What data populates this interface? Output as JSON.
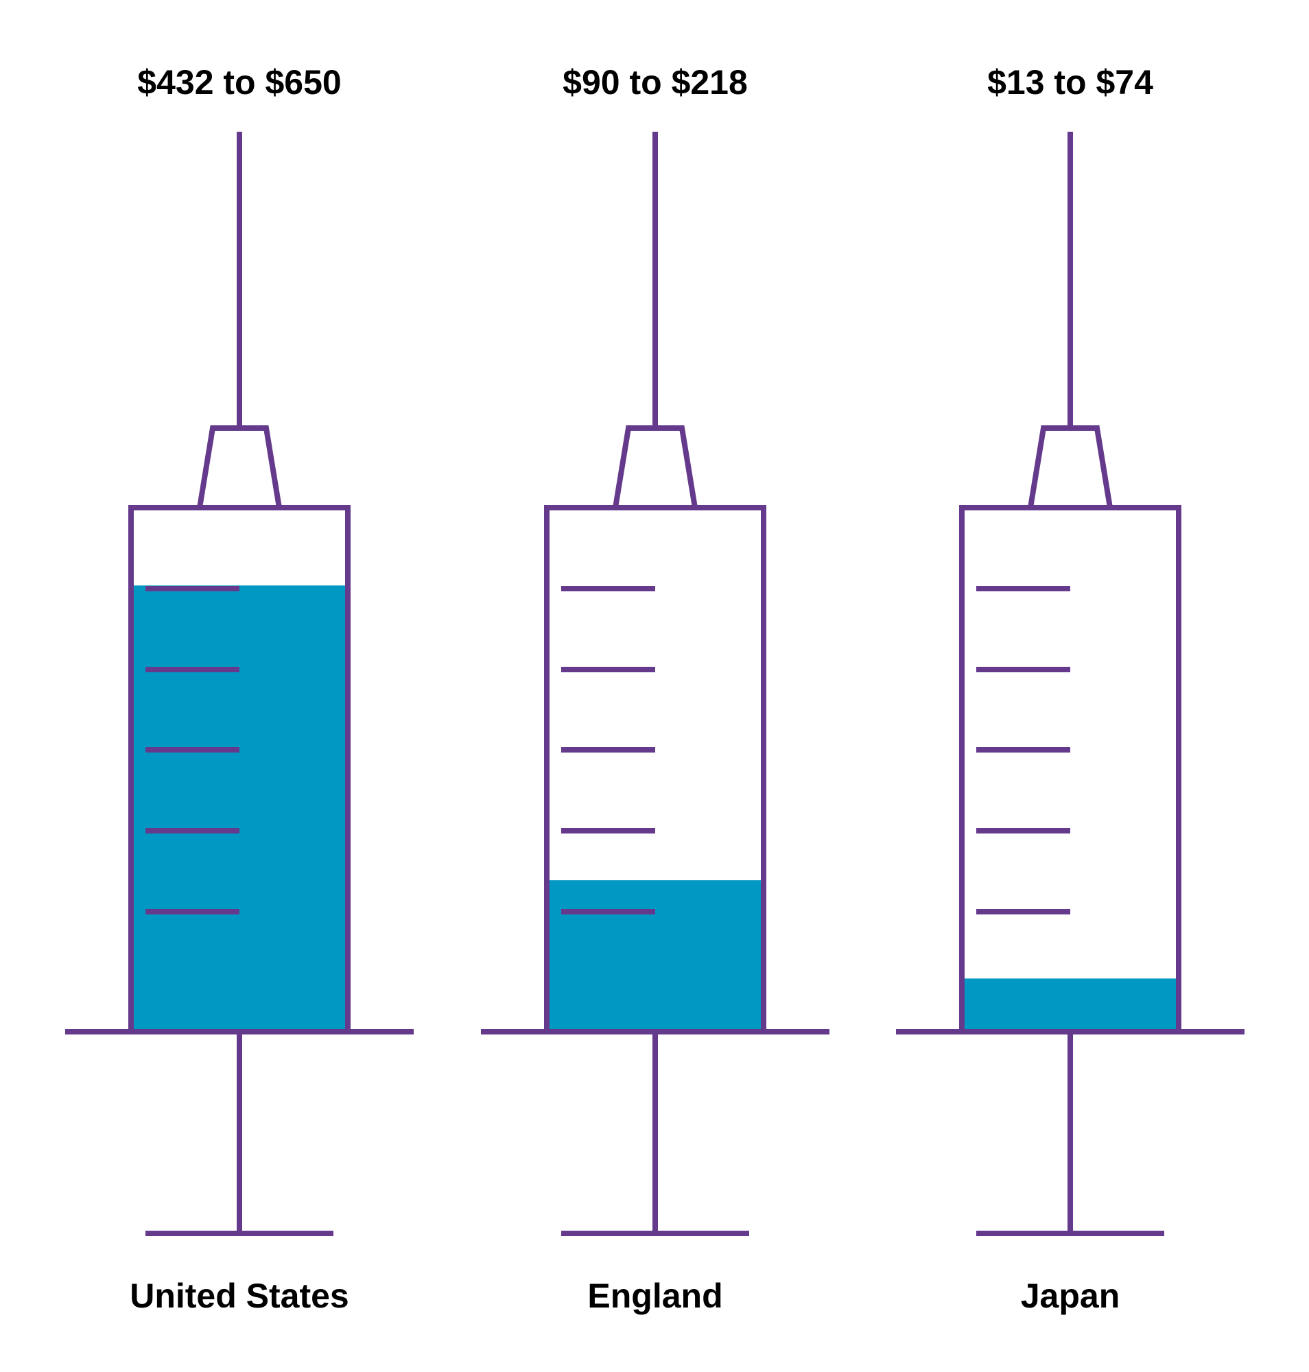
{
  "chart_data": {
    "type": "bar",
    "title": "",
    "xlabel": "",
    "ylabel": "",
    "categories": [
      "United States",
      "England",
      "Japan"
    ],
    "range_labels": [
      "$432 to $650",
      "$90 to $218",
      "$13 to $74"
    ],
    "series": [
      {
        "values": [
          650,
          218,
          74
        ]
      }
    ],
    "ylim": [
      0,
      760
    ],
    "grid": false,
    "legend": "none"
  },
  "colors": {
    "outline": "#653a8c",
    "fill": "#0199c4",
    "text": "#000000",
    "background": "#ffffff"
  }
}
